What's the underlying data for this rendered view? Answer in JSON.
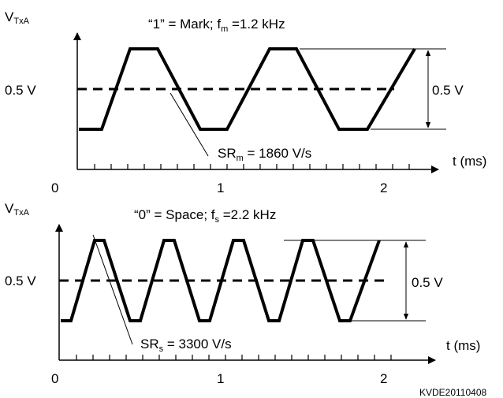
{
  "panels": [
    {
      "id": "mark",
      "y_axis_label": "V",
      "y_axis_label_sub": "TxA",
      "x_axis_label": "t (ms)",
      "level_label": "0.5 V",
      "amplitude_label": "0.5 V",
      "title_prefix": "“1” = Mark; f",
      "title_sub": "m",
      "title_suffix": " =1.2 kHz",
      "slew_prefix": "SR",
      "slew_sub": "m",
      "slew_suffix": " = 1860 V/s",
      "x_ticks": [
        "0",
        "1",
        "2"
      ]
    },
    {
      "id": "space",
      "y_axis_label": "V",
      "y_axis_label_sub": "TxA",
      "x_axis_label": "t (ms)",
      "level_label": "0.5 V",
      "amplitude_label": "0.5 V",
      "title_prefix": "“0” = Space; f",
      "title_sub": "s",
      "title_suffix": " =2.2 kHz",
      "slew_prefix": "SR",
      "slew_sub": "s",
      "slew_suffix": " = 3300 V/s",
      "x_ticks": [
        "0",
        "1",
        "2"
      ]
    }
  ],
  "figure_id": "KVDE20110408"
}
